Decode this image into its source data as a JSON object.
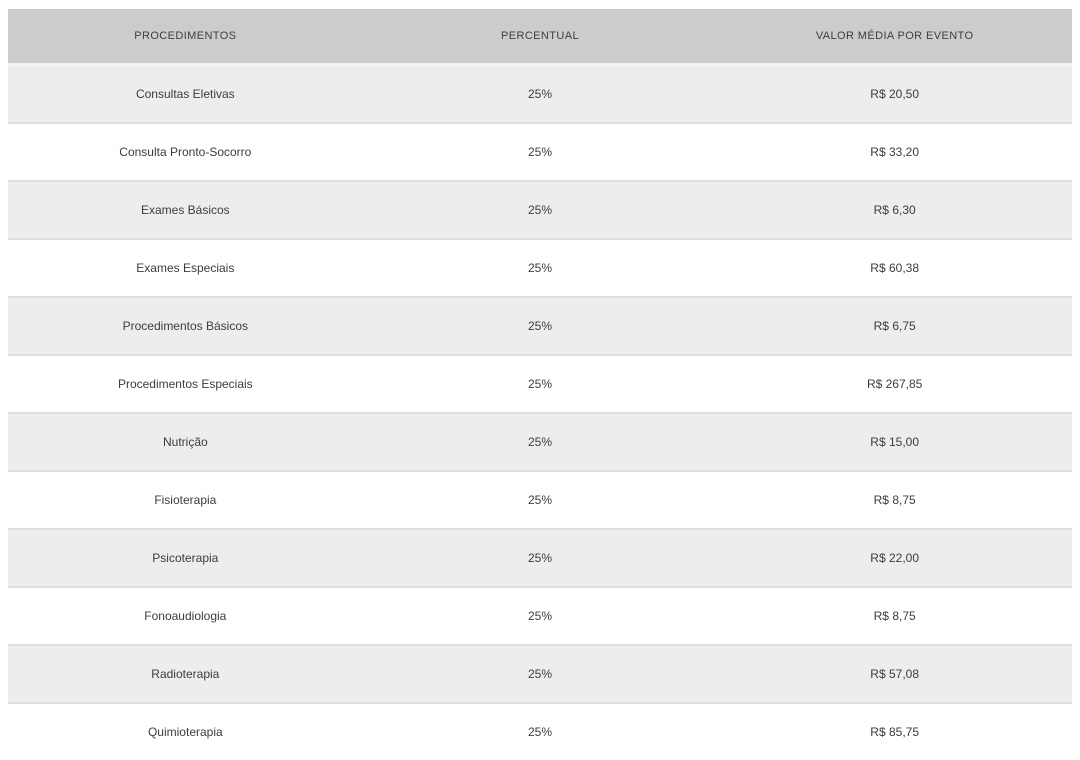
{
  "chart_data": {
    "type": "table",
    "title": "",
    "columns": [
      "PROCEDIMENTOS",
      "PERCENTUAL",
      "VALOR MÉDIA POR EVENTO"
    ],
    "rows": [
      [
        "Consultas Eletivas",
        "25%",
        "R$ 20,50"
      ],
      [
        "Consulta Pronto-Socorro",
        "25%",
        "R$ 33,20"
      ],
      [
        "Exames Básicos",
        "25%",
        "R$ 6,30"
      ],
      [
        "Exames Especiais",
        "25%",
        "R$ 60,38"
      ],
      [
        "Procedimentos Básicos",
        "25%",
        "R$ 6,75"
      ],
      [
        "Procedimentos Especiais",
        "25%",
        "R$ 267,85"
      ],
      [
        "Nutrição",
        "25%",
        "R$ 15,00"
      ],
      [
        "Fisioterapia",
        "25%",
        "R$ 8,75"
      ],
      [
        "Psicoterapia",
        "25%",
        "R$ 22,00"
      ],
      [
        "Fonoaudiologia",
        "25%",
        "R$ 8,75"
      ],
      [
        "Radioterapia",
        "25%",
        "R$ 57,08"
      ],
      [
        "Quimioterapia",
        "25%",
        "R$ 85,75"
      ]
    ],
    "percent_all_rows": 25,
    "values_brl": [
      20.5,
      33.2,
      6.3,
      60.38,
      6.75,
      267.85,
      15.0,
      8.75,
      22.0,
      8.75,
      57.08,
      85.75
    ],
    "layout_hints": {
      "zebra_striping": true,
      "first_data_row_shaded": true,
      "column_alignment": "center"
    }
  },
  "colors": {
    "header_bg": "#cccccc",
    "row_alt_bg": "#ededed",
    "row_bg": "#ffffff",
    "separator": "#dedede",
    "header_separator": "#f5f5f5",
    "text": "#3c3c3c"
  }
}
